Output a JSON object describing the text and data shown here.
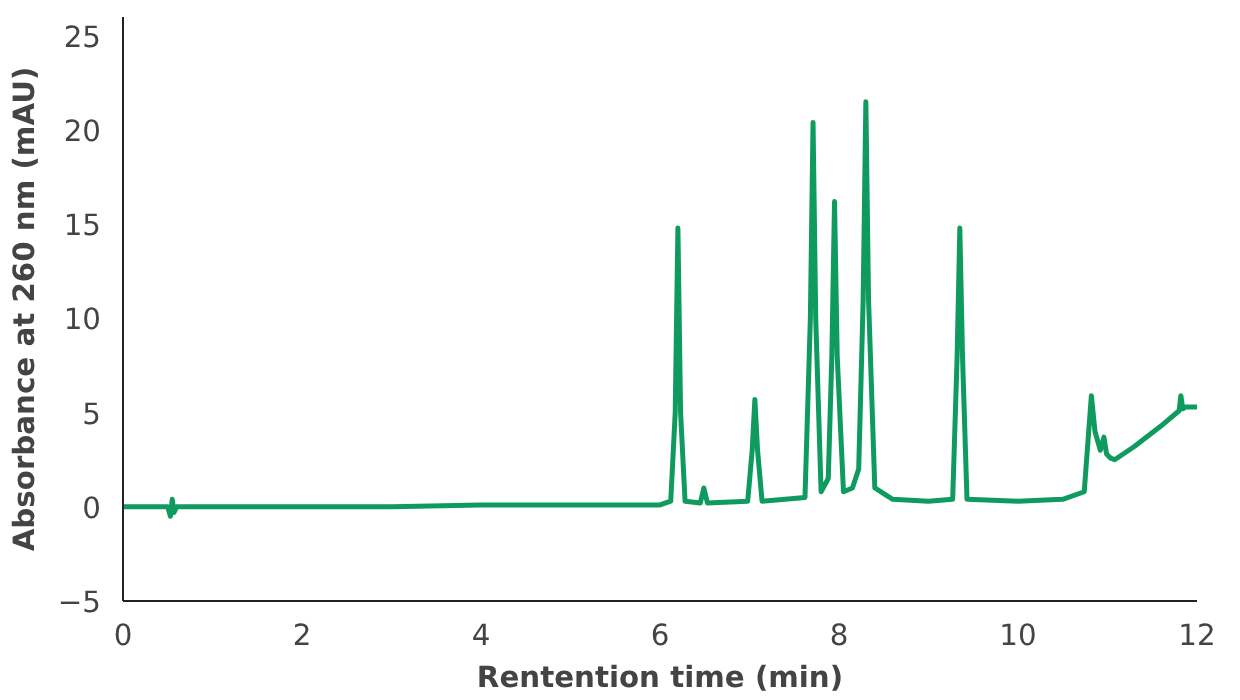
{
  "chart_data": {
    "type": "line",
    "xlabel": "Rentention time (min)",
    "ylabel": "Absorbance at 260 nm (mAU)",
    "xlim": [
      0,
      12
    ],
    "ylim": [
      -5,
      26
    ],
    "xticks": [
      0,
      2,
      4,
      6,
      8,
      10,
      12
    ],
    "yticks": [
      -5,
      0,
      5,
      10,
      15,
      20,
      25
    ],
    "grid": false,
    "marker": "none",
    "line_style": "solid",
    "series": [
      {
        "color": "#0f9b5f",
        "x": [
          0,
          0.5,
          0.53,
          0.55,
          0.57,
          0.6,
          1,
          2,
          3,
          4,
          5,
          6,
          6.12,
          6.17,
          6.2,
          6.23,
          6.28,
          6.45,
          6.49,
          6.53,
          6.98,
          7.03,
          7.06,
          7.09,
          7.14,
          7.62,
          7.68,
          7.71,
          7.74,
          7.8,
          7.88,
          7.92,
          7.95,
          7.98,
          8.05,
          8.15,
          8.22,
          8.27,
          8.3,
          8.33,
          8.4,
          8.6,
          9.0,
          9.27,
          9.32,
          9.35,
          9.38,
          9.43,
          10.0,
          10.5,
          10.74,
          10.79,
          10.82,
          10.86,
          10.92,
          10.96,
          10.99,
          11.03,
          11.08,
          11.3,
          11.6,
          11.8,
          11.82,
          11.84,
          11.87,
          12.0
        ],
        "values": [
          0,
          0,
          -0.5,
          0.4,
          -0.3,
          0,
          0,
          0,
          0,
          0.1,
          0.1,
          0.1,
          0.3,
          5,
          14.8,
          5,
          0.3,
          0.2,
          1.0,
          0.2,
          0.3,
          3,
          5.7,
          3,
          0.3,
          0.5,
          10,
          20.4,
          10,
          0.8,
          1.5,
          8,
          16.2,
          8,
          0.8,
          1.0,
          2,
          11,
          21.5,
          11,
          1.0,
          0.4,
          0.3,
          0.4,
          8,
          14.8,
          8,
          0.4,
          0.3,
          0.4,
          0.8,
          4,
          5.9,
          4,
          3.0,
          3.7,
          2.8,
          2.6,
          2.5,
          3.2,
          4.3,
          5.1,
          5.9,
          5.2,
          5.3,
          5.3
        ]
      }
    ]
  }
}
